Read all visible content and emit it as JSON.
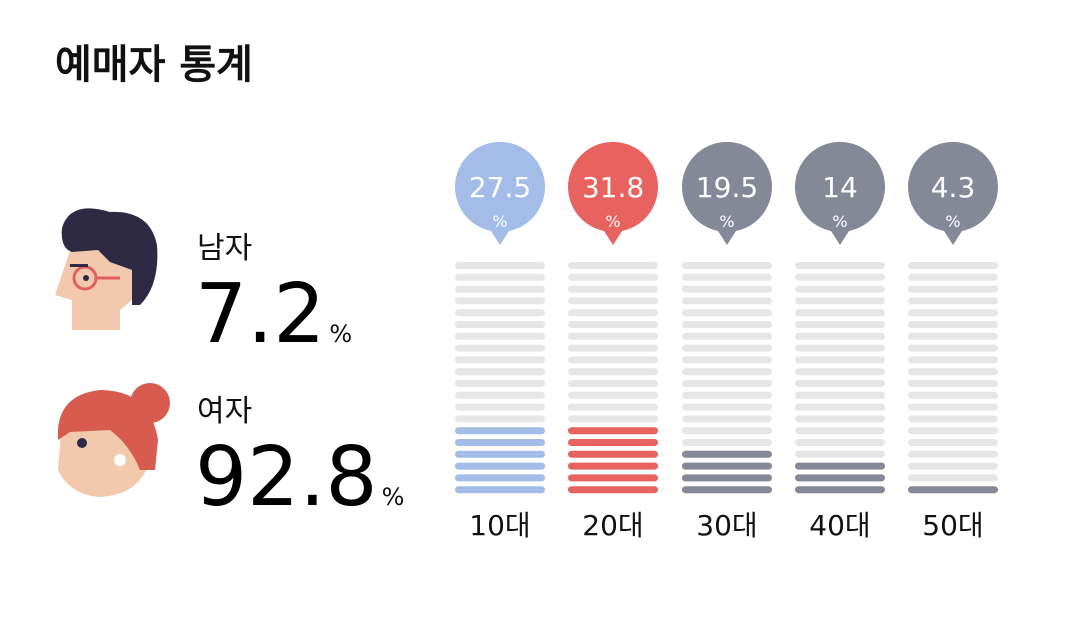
{
  "title": "예매자 통계",
  "unit": "%",
  "gender": [
    {
      "label": "남자",
      "value": 7.2
    },
    {
      "label": "여자",
      "value": 92.8
    }
  ],
  "age": [
    {
      "label": "10대",
      "value": 27.5,
      "color": "#a3bde8"
    },
    {
      "label": "20대",
      "value": 31.8,
      "color": "#e8625f"
    },
    {
      "label": "30대",
      "value": 19.5,
      "color": "#858897"
    },
    {
      "label": "40대",
      "value": 14,
      "color": "#858897"
    },
    {
      "label": "50대",
      "value": 4.3,
      "color": "#858897"
    }
  ]
}
